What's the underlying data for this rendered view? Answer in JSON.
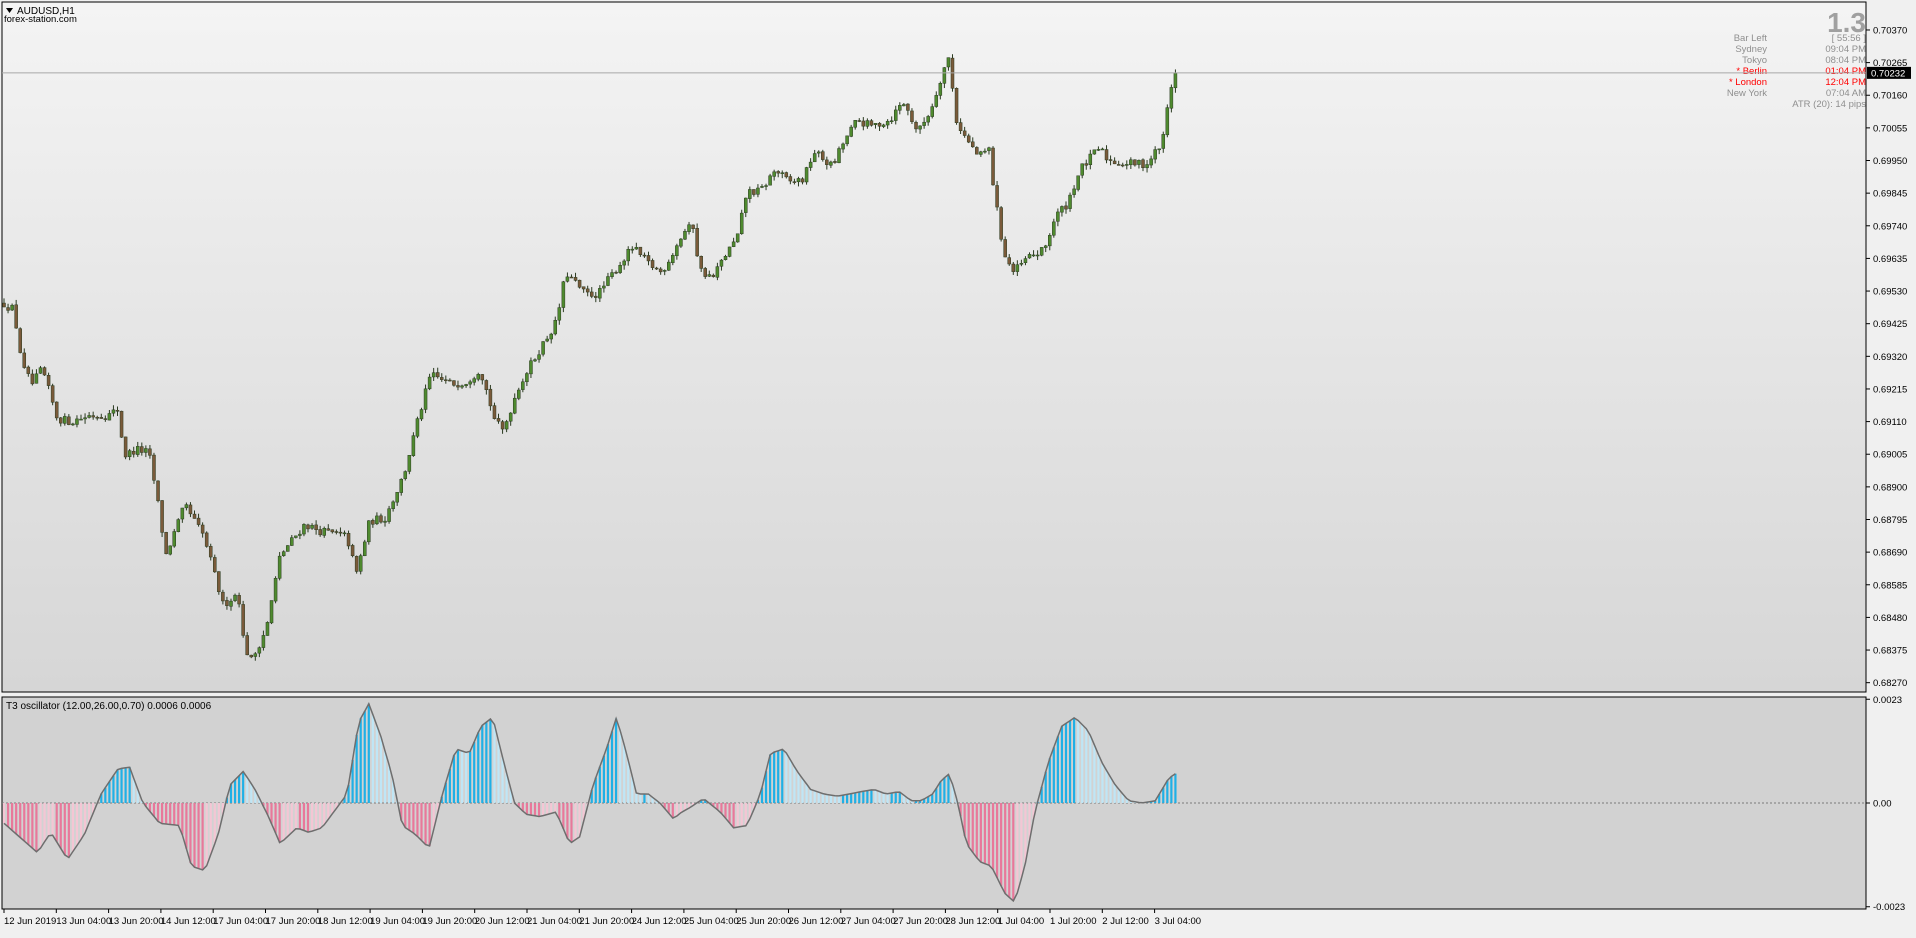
{
  "header": {
    "symbol_title": "AUDUSD,H1",
    "source": "forex-station.com",
    "big_value": "1.3"
  },
  "info_panel": [
    {
      "label": "Bar Left",
      "value": "[ 55:56 ]",
      "highlight": false
    },
    {
      "label": "Sydney",
      "value": "09:04 PM",
      "highlight": false
    },
    {
      "label": "Tokyo",
      "value": "08:04 PM",
      "highlight": false
    },
    {
      "label": "* Berlin",
      "value": "01:04 PM",
      "highlight": true
    },
    {
      "label": "* London",
      "value": "12:04 PM",
      "highlight": true
    },
    {
      "label": "New York",
      "value": "07:04 AM",
      "highlight": false
    },
    {
      "label": "ATR (20): 14 pips",
      "value": "",
      "highlight": false
    }
  ],
  "colors": {
    "bull": "#4f8a2f",
    "bear": "#7a5a3a",
    "osc_positive": "#1fb0e6",
    "osc_positive_light": "#bfe6f6",
    "osc_negative": "#e8789a",
    "osc_negative_light": "#f4c6d4",
    "highlight_text": "#ff0000",
    "panel_text": "#8f8f8f"
  },
  "chart_data": [
    {
      "type": "candlestick",
      "symbol": "AUDUSD",
      "timeframe": "H1",
      "y_ticks": [
        "0.70370",
        "0.70265",
        "0.70160",
        "0.70055",
        "0.69950",
        "0.69845",
        "0.69740",
        "0.69635",
        "0.69530",
        "0.69425",
        "0.69320",
        "0.69215",
        "0.69110",
        "0.69005",
        "0.68900",
        "0.68795",
        "0.68690",
        "0.68585",
        "0.68480",
        "0.68375",
        "0.68270"
      ],
      "ylim": [
        0.6824,
        0.7046
      ],
      "current_price": "0.70232",
      "current_price_value": 0.70232,
      "x_labels": [
        "12 Jun 2019",
        "13 Jun 04:00",
        "13 Jun 20:00",
        "14 Jun 12:00",
        "17 Jun 04:00",
        "17 Jun 20:00",
        "18 Jun 12:00",
        "19 Jun 04:00",
        "19 Jun 20:00",
        "20 Jun 12:00",
        "21 Jun 04:00",
        "21 Jun 20:00",
        "24 Jun 12:00",
        "25 Jun 04:00",
        "25 Jun 20:00",
        "26 Jun 12:00",
        "27 Jun 04:00",
        "27 Jun 20:00",
        "28 Jun 12:00",
        "1 Jul 04:00",
        "1 Jul 20:00",
        "2 Jul 12:00",
        "3 Jul 04:00"
      ],
      "bar_count": 290,
      "close_path": [
        [
          0,
          0.6949
        ],
        [
          5,
          0.6947
        ],
        [
          10,
          0.6928
        ],
        [
          15,
          0.6923
        ],
        [
          20,
          0.6928
        ],
        [
          28,
          0.6912
        ],
        [
          35,
          0.6911
        ],
        [
          45,
          0.6913
        ],
        [
          55,
          0.6913
        ],
        [
          60,
          0.6915
        ],
        [
          63,
          0.69
        ],
        [
          70,
          0.6902
        ],
        [
          76,
          0.6901
        ],
        [
          80,
          0.6888
        ],
        [
          85,
          0.6868
        ],
        [
          95,
          0.6884
        ],
        [
          105,
          0.6874
        ],
        [
          115,
          0.6852
        ],
        [
          123,
          0.6856
        ],
        [
          126,
          0.6839
        ],
        [
          130,
          0.6834
        ],
        [
          138,
          0.6845
        ],
        [
          145,
          0.6868
        ],
        [
          158,
          0.6878
        ],
        [
          165,
          0.6876
        ],
        [
          180,
          0.6874
        ],
        [
          185,
          0.6862
        ],
        [
          192,
          0.6879
        ],
        [
          200,
          0.688
        ],
        [
          210,
          0.6894
        ],
        [
          218,
          0.6913
        ],
        [
          224,
          0.6926
        ],
        [
          235,
          0.6923
        ],
        [
          243,
          0.6924
        ],
        [
          250,
          0.6928
        ],
        [
          258,
          0.6911
        ],
        [
          262,
          0.6908
        ],
        [
          270,
          0.6922
        ],
        [
          280,
          0.6933
        ],
        [
          290,
          0.6943
        ],
        [
          295,
          0.6959
        ],
        [
          305,
          0.6952
        ],
        [
          312,
          0.6952
        ],
        [
          320,
          0.6959
        ],
        [
          330,
          0.6967
        ],
        [
          338,
          0.6962
        ],
        [
          345,
          0.6959
        ],
        [
          350,
          0.6964
        ],
        [
          357,
          0.6972
        ],
        [
          362,
          0.6974
        ],
        [
          365,
          0.696
        ],
        [
          372,
          0.6957
        ],
        [
          378,
          0.6964
        ],
        [
          385,
          0.697
        ],
        [
          390,
          0.6985
        ],
        [
          397,
          0.6985
        ],
        [
          405,
          0.6992
        ],
        [
          412,
          0.6988
        ],
        [
          420,
          0.6989
        ],
        [
          425,
          0.6998
        ],
        [
          435,
          0.6993
        ],
        [
          440,
          0.7
        ],
        [
          448,
          0.7008
        ],
        [
          455,
          0.7006
        ],
        [
          465,
          0.7008
        ],
        [
          472,
          0.7014
        ],
        [
          480,
          0.7004
        ],
        [
          487,
          0.7012
        ],
        [
          493,
          0.7024
        ],
        [
          496,
          0.7028
        ],
        [
          500,
          0.7008
        ],
        [
          505,
          0.7002
        ],
        [
          512,
          0.6996
        ],
        [
          517,
          0.6999
        ],
        [
          520,
          0.6984
        ],
        [
          525,
          0.6965
        ],
        [
          530,
          0.6959
        ],
        [
          538,
          0.6964
        ],
        [
          546,
          0.6966
        ],
        [
          552,
          0.6977
        ],
        [
          558,
          0.6981
        ],
        [
          565,
          0.6992
        ],
        [
          575,
          0.6999
        ],
        [
          580,
          0.6995
        ],
        [
          590,
          0.6994
        ],
        [
          600,
          0.6994
        ],
        [
          606,
          0.6999
        ],
        [
          608,
          0.7
        ],
        [
          612,
          0.7017
        ],
        [
          615,
          0.70232
        ]
      ]
    },
    {
      "type": "bar",
      "name": "T3 oscillator (12.00,26.00,0.70) 0.0006 0.0006",
      "y_ticks": [
        "0.0023",
        "0.00",
        "-0.0023"
      ],
      "y_tick_values": [
        0.0023,
        0,
        -0.0023
      ],
      "ylim": [
        -0.00235,
        0.00235
      ],
      "bar_count": 290,
      "curve": [
        [
          0,
          -0.00045
        ],
        [
          20,
          -0.0011
        ],
        [
          28,
          -0.00065
        ],
        [
          38,
          -0.00125
        ],
        [
          48,
          -0.0007
        ],
        [
          58,
          0.0002
        ],
        [
          68,
          0.00075
        ],
        [
          75,
          0.0008
        ],
        [
          83,
          0.0
        ],
        [
          93,
          -0.00045
        ],
        [
          105,
          -0.0005
        ],
        [
          112,
          -0.0014
        ],
        [
          120,
          -0.0015
        ],
        [
          128,
          -0.0007
        ],
        [
          135,
          0.0004
        ],
        [
          143,
          0.0007
        ],
        [
          150,
          0.0003
        ],
        [
          158,
          -0.0003
        ],
        [
          165,
          -0.0009
        ],
        [
          175,
          -0.00055
        ],
        [
          182,
          -0.00065
        ],
        [
          190,
          -0.00055
        ],
        [
          197,
          -0.0002
        ],
        [
          205,
          0.0002
        ],
        [
          212,
          0.0018
        ],
        [
          218,
          0.0022
        ],
        [
          225,
          0.0015
        ],
        [
          232,
          0.0006
        ],
        [
          238,
          -0.0005
        ],
        [
          246,
          -0.0007
        ],
        [
          254,
          -0.001
        ],
        [
          262,
          0.0002
        ],
        [
          270,
          0.0012
        ],
        [
          278,
          0.0011
        ],
        [
          285,
          0.0017
        ],
        [
          292,
          0.0019
        ],
        [
          298,
          0.001
        ],
        [
          305,
          0.0
        ],
        [
          312,
          -0.00025
        ],
        [
          320,
          -0.0003
        ],
        [
          330,
          -0.0002
        ],
        [
          338,
          -0.0009
        ],
        [
          344,
          -0.00075
        ],
        [
          352,
          0.0004
        ],
        [
          360,
          0.0012
        ],
        [
          366,
          0.0019
        ],
        [
          372,
          0.0011
        ],
        [
          378,
          0.0002
        ],
        [
          385,
          0.0002
        ],
        [
          392,
          0.0
        ],
        [
          400,
          -0.00035
        ],
        [
          405,
          -0.0002
        ],
        [
          410,
          -0.0001
        ],
        [
          418,
          0.0001
        ],
        [
          428,
          -0.0002
        ],
        [
          436,
          -0.00055
        ],
        [
          444,
          -0.0005
        ],
        [
          452,
          0.0002
        ],
        [
          458,
          0.0011
        ],
        [
          466,
          0.0012
        ],
        [
          474,
          0.0007
        ],
        [
          482,
          0.0003
        ],
        [
          490,
          0.0002
        ],
        [
          498,
          0.00015
        ],
        [
          505,
          0.0002
        ],
        [
          512,
          0.00025
        ],
        [
          520,
          0.0003
        ],
        [
          527,
          0.0002
        ],
        [
          535,
          0.00025
        ],
        [
          542,
          5e-05
        ],
        [
          548,
          5e-05
        ],
        [
          555,
          0.0002
        ],
        [
          560,
          0.0005
        ],
        [
          565,
          0.00065
        ],
        [
          570,
          0.0
        ],
        [
          575,
          -0.0009
        ],
        [
          583,
          -0.0013
        ],
        [
          590,
          -0.0014
        ],
        [
          598,
          -0.002
        ],
        [
          604,
          -0.0022
        ],
        [
          610,
          -0.0014
        ],
        [
          616,
          -0.0002
        ],
        [
          624,
          0.0009
        ],
        [
          632,
          0.0017
        ],
        [
          640,
          0.0019
        ],
        [
          648,
          0.0016
        ],
        [
          656,
          0.0009
        ],
        [
          664,
          0.0004
        ],
        [
          672,
          5e-05
        ],
        [
          680,
          0.0
        ],
        [
          688,
          5e-05
        ],
        [
          696,
          0.00055
        ],
        [
          700,
          0.00065
        ]
      ]
    }
  ]
}
